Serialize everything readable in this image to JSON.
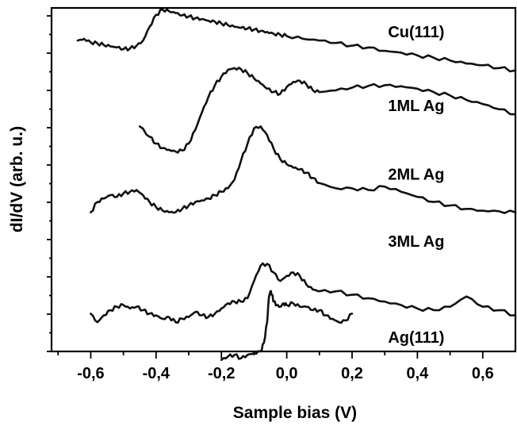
{
  "chart_data": {
    "type": "line",
    "title": "",
    "xlabel": "Sample bias (V)",
    "ylabel": "dI/dV (arb. u.)",
    "xlim": [
      -0.72,
      0.7
    ],
    "ylim": [
      0,
      10
    ],
    "xticks": [
      -0.6,
      -0.4,
      -0.2,
      0.0,
      0.2,
      0.4,
      0.6
    ],
    "xtick_labels": [
      "-0,6",
      "-0,4",
      "-0,2",
      "0,0",
      "0,2",
      "0,4",
      "0,6"
    ],
    "y_tick_labels_shown": false,
    "y_minor_ticks": 9,
    "grid": false,
    "legend": "inline labels",
    "series": [
      {
        "name": "Cu(111)",
        "x": [
          -0.64,
          -0.62,
          -0.6,
          -0.58,
          -0.56,
          -0.54,
          -0.52,
          -0.5,
          -0.48,
          -0.46,
          -0.44,
          -0.42,
          -0.4,
          -0.38,
          -0.36,
          -0.34,
          -0.32,
          -0.3,
          -0.28,
          -0.26,
          -0.24,
          -0.22,
          -0.2,
          -0.18,
          -0.16,
          -0.14,
          -0.12,
          -0.1,
          -0.08,
          -0.06,
          -0.04,
          -0.02,
          0.0,
          0.05,
          0.1,
          0.15,
          0.2,
          0.25,
          0.3,
          0.35,
          0.4,
          0.45,
          0.5,
          0.55,
          0.6,
          0.65,
          0.7
        ],
        "values": [
          9.05,
          9.1,
          9.0,
          8.97,
          8.92,
          8.88,
          8.85,
          8.8,
          8.82,
          8.9,
          9.05,
          9.45,
          9.8,
          9.95,
          9.9,
          9.85,
          9.78,
          9.75,
          9.7,
          9.68,
          9.63,
          9.6,
          9.55,
          9.5,
          9.45,
          9.42,
          9.4,
          9.37,
          9.33,
          9.3,
          9.25,
          9.22,
          9.18,
          9.1,
          9.05,
          8.98,
          8.9,
          8.85,
          8.75,
          8.7,
          8.62,
          8.55,
          8.47,
          8.38,
          8.33,
          8.25,
          8.18
        ]
      },
      {
        "name": "1ML Ag",
        "x": [
          -0.45,
          -0.42,
          -0.4,
          -0.38,
          -0.36,
          -0.34,
          -0.32,
          -0.3,
          -0.28,
          -0.26,
          -0.24,
          -0.22,
          -0.2,
          -0.18,
          -0.16,
          -0.14,
          -0.12,
          -0.1,
          -0.08,
          -0.06,
          -0.04,
          -0.02,
          0.0,
          0.02,
          0.04,
          0.06,
          0.08,
          0.1,
          0.15,
          0.2,
          0.25,
          0.3,
          0.35,
          0.4,
          0.45,
          0.5,
          0.55,
          0.6,
          0.65,
          0.7
        ],
        "values": [
          6.55,
          6.25,
          6.05,
          5.92,
          5.87,
          5.82,
          5.85,
          6.05,
          6.45,
          6.95,
          7.4,
          7.75,
          8.0,
          8.2,
          8.25,
          8.22,
          8.1,
          7.95,
          7.8,
          7.65,
          7.55,
          7.5,
          7.7,
          7.85,
          7.88,
          7.78,
          7.6,
          7.55,
          7.6,
          7.68,
          7.73,
          7.75,
          7.72,
          7.65,
          7.55,
          7.45,
          7.32,
          7.2,
          7.05,
          6.9
        ]
      },
      {
        "name": "2ML Ag",
        "x": [
          -0.6,
          -0.58,
          -0.56,
          -0.54,
          -0.52,
          -0.5,
          -0.48,
          -0.46,
          -0.44,
          -0.42,
          -0.4,
          -0.38,
          -0.36,
          -0.34,
          -0.32,
          -0.3,
          -0.28,
          -0.26,
          -0.24,
          -0.22,
          -0.2,
          -0.18,
          -0.16,
          -0.14,
          -0.12,
          -0.1,
          -0.08,
          -0.06,
          -0.04,
          -0.02,
          0.0,
          0.02,
          0.04,
          0.06,
          0.08,
          0.1,
          0.15,
          0.2,
          0.25,
          0.3,
          0.35,
          0.4,
          0.45,
          0.5,
          0.55,
          0.6,
          0.65,
          0.7
        ],
        "values": [
          4.05,
          4.35,
          4.45,
          4.55,
          4.5,
          4.6,
          4.65,
          4.7,
          4.55,
          4.35,
          4.2,
          4.1,
          4.05,
          4.05,
          4.15,
          4.25,
          4.35,
          4.4,
          4.45,
          4.55,
          4.65,
          4.75,
          5.0,
          5.55,
          6.05,
          6.5,
          6.55,
          6.3,
          5.9,
          5.6,
          5.45,
          5.35,
          5.3,
          5.2,
          5.05,
          4.9,
          4.75,
          4.75,
          4.7,
          4.8,
          4.65,
          4.5,
          4.35,
          4.25,
          4.15,
          4.1,
          4.08,
          4.05
        ]
      },
      {
        "name": "3ML Ag",
        "x": [
          -0.6,
          -0.58,
          -0.56,
          -0.54,
          -0.52,
          -0.5,
          -0.48,
          -0.46,
          -0.44,
          -0.42,
          -0.4,
          -0.38,
          -0.36,
          -0.34,
          -0.32,
          -0.3,
          -0.28,
          -0.26,
          -0.24,
          -0.22,
          -0.2,
          -0.18,
          -0.16,
          -0.14,
          -0.12,
          -0.1,
          -0.08,
          -0.06,
          -0.04,
          -0.02,
          0.0,
          0.02,
          0.04,
          0.06,
          0.08,
          0.1,
          0.15,
          0.2,
          0.25,
          0.3,
          0.35,
          0.4,
          0.45,
          0.5,
          0.55,
          0.6,
          0.65,
          0.7
        ],
        "values": [
          1.1,
          0.85,
          1.05,
          1.2,
          1.3,
          1.35,
          1.25,
          1.3,
          1.2,
          1.1,
          1.05,
          0.95,
          1.0,
          0.85,
          0.95,
          1.0,
          1.15,
          1.05,
          1.0,
          1.1,
          1.25,
          1.4,
          1.45,
          1.45,
          1.55,
          2.05,
          2.5,
          2.55,
          2.3,
          2.05,
          2.2,
          2.3,
          2.2,
          1.95,
          1.8,
          1.75,
          1.75,
          1.65,
          1.55,
          1.45,
          1.35,
          1.25,
          1.2,
          1.3,
          1.6,
          1.3,
          1.2,
          1.05
        ]
      },
      {
        "name": "Ag(111)",
        "x": [
          -0.2,
          -0.18,
          -0.16,
          -0.14,
          -0.12,
          -0.1,
          -0.08,
          -0.07,
          -0.06,
          -0.055,
          -0.05,
          -0.045,
          -0.04,
          -0.03,
          -0.02,
          -0.01,
          0.0,
          0.02,
          0.04,
          0.06,
          0.08,
          0.1,
          0.12,
          0.14,
          0.16,
          0.18,
          0.2
        ],
        "values": [
          -0.25,
          -0.15,
          -0.1,
          -0.2,
          -0.1,
          -0.05,
          0.0,
          0.25,
          0.85,
          1.55,
          1.75,
          1.65,
          1.45,
          1.35,
          1.3,
          1.4,
          1.35,
          1.4,
          1.3,
          1.3,
          1.2,
          1.2,
          1.05,
          0.95,
          0.85,
          0.9,
          1.1
        ]
      }
    ],
    "series_label_positions": [
      {
        "name": "Cu(111)",
        "x": 0.31,
        "y": 9.15
      },
      {
        "name": "1ML Ag",
        "x": 0.31,
        "y": 7.0
      },
      {
        "name": "2ML Ag",
        "x": 0.31,
        "y": 5.0
      },
      {
        "name": "3ML Ag",
        "x": 0.31,
        "y": 3.05
      },
      {
        "name": "Ag(111)",
        "x": 0.31,
        "y": 0.25
      }
    ]
  }
}
